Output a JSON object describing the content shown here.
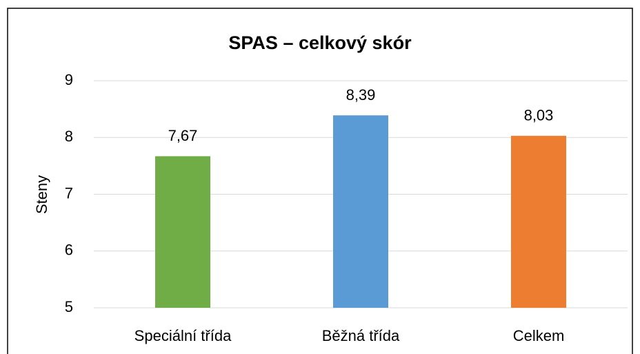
{
  "chart_data": {
    "type": "bar",
    "title": "SPAS – celkový skór",
    "y_label": "Steny",
    "categories": [
      "Speciální třída",
      "Běžná třída",
      "Celkem"
    ],
    "values": [
      7.67,
      8.39,
      8.03
    ],
    "value_labels": [
      "7,67",
      "8,39",
      "8,03"
    ],
    "colors": [
      "#70ad47",
      "#5b9bd5",
      "#ed7d31"
    ],
    "ylim": [
      5,
      9
    ],
    "yticks": [
      5,
      6,
      7,
      8,
      9
    ],
    "grid": true
  }
}
